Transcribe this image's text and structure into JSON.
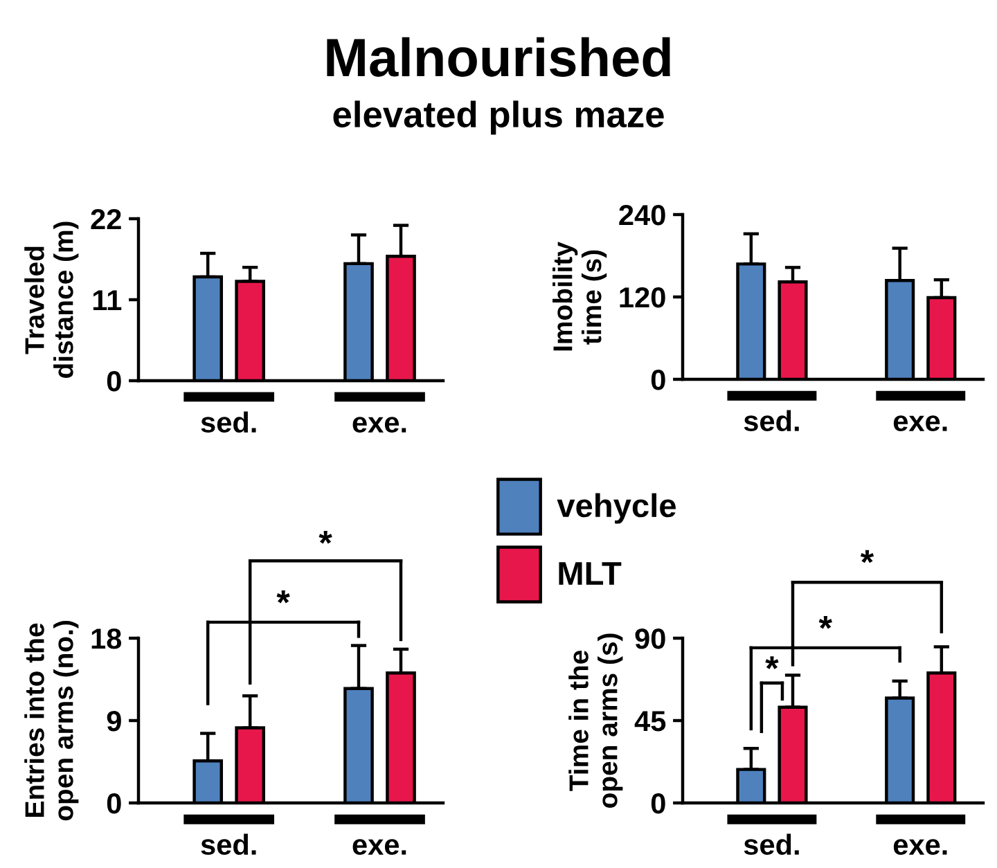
{
  "chart_data": [
    {
      "type": "bar",
      "title": "Malnourished",
      "subtitle": "elevated plus maze",
      "ylabel": "Traveled\ndistance (m)",
      "categories": [
        "sed.",
        "exe."
      ],
      "ylim": [
        0,
        22
      ],
      "yticks": [
        0,
        11,
        22
      ],
      "legend": "bottom right",
      "grid": false,
      "series": [
        {
          "name": "vehycle",
          "color": "#4f81bd",
          "values": [
            14.1,
            15.9
          ],
          "errors": [
            3.2,
            3.9
          ]
        },
        {
          "name": "MLT",
          "color": "#e8174b",
          "values": [
            13.5,
            16.9
          ],
          "errors": [
            1.9,
            4.2
          ]
        }
      ]
    },
    {
      "type": "bar",
      "ylabel": "Imobility\ntime (s)",
      "categories": [
        "sed.",
        "exe."
      ],
      "ylim": [
        0,
        240
      ],
      "yticks": [
        0,
        120,
        240
      ],
      "grid": false,
      "series": [
        {
          "color": "#4f81bd",
          "values": [
            168,
            144
          ],
          "errors": [
            44,
            47
          ]
        },
        {
          "color": "#e8174b",
          "values": [
            142,
            119
          ],
          "errors": [
            21,
            26
          ]
        }
      ]
    },
    {
      "type": "bar",
      "ylabel": "Entries into the\nopen arms (no.)",
      "categories": [
        "sed.",
        "exe."
      ],
      "ylim": [
        0,
        18
      ],
      "yticks": [
        0,
        9,
        18
      ],
      "grid": false,
      "annotations": [
        "*",
        "*"
      ],
      "series": [
        {
          "color": "#4f81bd",
          "values": [
            4.6,
            12.5
          ],
          "errors": [
            3.0,
            4.7
          ]
        },
        {
          "color": "#e8174b",
          "values": [
            8.2,
            14.2
          ],
          "errors": [
            3.5,
            2.6
          ]
        }
      ]
    },
    {
      "type": "bar",
      "ylabel": "Time in the\nopen arms (s)",
      "categories": [
        "sed.",
        "exe."
      ],
      "ylim": [
        0,
        90
      ],
      "yticks": [
        0,
        45,
        90
      ],
      "grid": false,
      "annotations": [
        "*",
        "*",
        "*"
      ],
      "series": [
        {
          "color": "#4f81bd",
          "values": [
            18.3,
            57.3
          ],
          "errors": [
            11.5,
            9.3
          ]
        },
        {
          "color": "#e8174b",
          "values": [
            52.3,
            71
          ],
          "errors": [
            17.5,
            14.3
          ]
        }
      ]
    }
  ]
}
